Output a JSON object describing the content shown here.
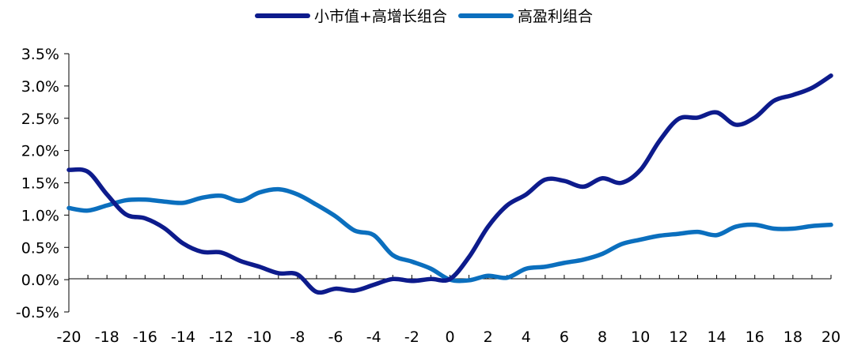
{
  "chart_data": {
    "type": "line",
    "title": "",
    "xlabel": "",
    "ylabel": "",
    "x": [
      -20,
      -19,
      -18,
      -17,
      -16,
      -15,
      -14,
      -13,
      -12,
      -11,
      -10,
      -9,
      -8,
      -7,
      -6,
      -5,
      -4,
      -3,
      -2,
      -1,
      0,
      1,
      2,
      3,
      4,
      5,
      6,
      7,
      8,
      9,
      10,
      11,
      12,
      13,
      14,
      15,
      16,
      17,
      18,
      19,
      20
    ],
    "xlim": [
      -20,
      20
    ],
    "ylim": [
      -0.5,
      3.5
    ],
    "x_ticks": [
      -20,
      -18,
      -16,
      -14,
      -12,
      -10,
      -8,
      -6,
      -4,
      -2,
      0,
      2,
      4,
      6,
      8,
      10,
      12,
      14,
      16,
      18,
      20
    ],
    "x_tick_labels": [
      "-20",
      "-18",
      "-16",
      "-14",
      "-12",
      "-10",
      "-8",
      "-6",
      "-4",
      "-2",
      "0",
      "2",
      "4",
      "6",
      "8",
      "10",
      "12",
      "14",
      "16",
      "18",
      "20"
    ],
    "y_ticks": [
      3.5,
      3.0,
      2.5,
      2.0,
      1.5,
      1.0,
      0.5,
      0.0,
      -0.5
    ],
    "y_tick_labels": [
      "3.5%",
      "3.0%",
      "2.5%",
      "2.0%",
      "1.5%",
      "1.0%",
      "0.5%",
      "0.0%",
      "-0.5%"
    ],
    "grid": false,
    "legend_position": "top",
    "series": [
      {
        "name": "小市值+高增长组合",
        "color": "#0d1b8c",
        "values": [
          1.7,
          1.67,
          1.32,
          1.01,
          0.95,
          0.8,
          0.56,
          0.43,
          0.42,
          0.29,
          0.2,
          0.1,
          0.08,
          -0.19,
          -0.14,
          -0.17,
          -0.08,
          0.01,
          -0.02,
          0.01,
          0.01,
          0.35,
          0.82,
          1.15,
          1.32,
          1.55,
          1.53,
          1.44,
          1.57,
          1.5,
          1.7,
          2.15,
          2.49,
          2.51,
          2.59,
          2.4,
          2.51,
          2.77,
          2.86,
          2.97,
          3.16
        ]
      },
      {
        "name": "高盈利组合",
        "color": "#0b6fbe",
        "values": [
          1.11,
          1.07,
          1.15,
          1.23,
          1.24,
          1.21,
          1.19,
          1.27,
          1.3,
          1.22,
          1.35,
          1.4,
          1.32,
          1.16,
          0.98,
          0.76,
          0.69,
          0.38,
          0.28,
          0.17,
          0.0,
          -0.01,
          0.06,
          0.03,
          0.17,
          0.2,
          0.26,
          0.31,
          0.4,
          0.55,
          0.62,
          0.68,
          0.71,
          0.74,
          0.69,
          0.82,
          0.85,
          0.79,
          0.79,
          0.83,
          0.85
        ]
      }
    ]
  }
}
